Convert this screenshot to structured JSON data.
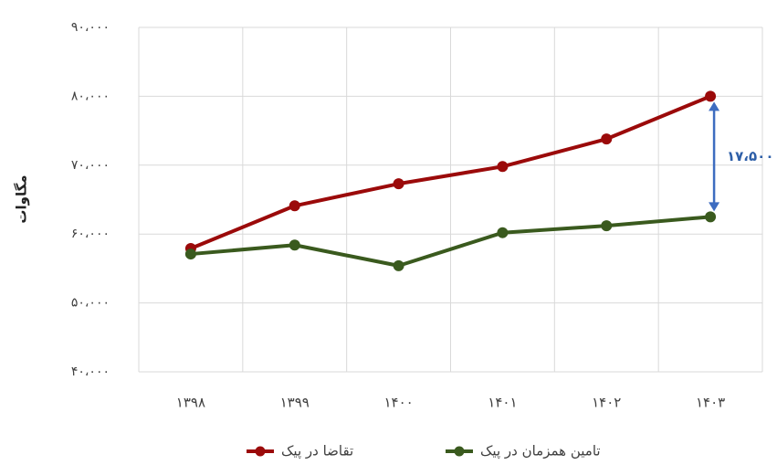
{
  "chart_data": {
    "type": "line",
    "y_label": "مگاوات",
    "annotation": "۱۷،۵۰۰",
    "categories": [
      "۱۳۹۸",
      "۱۳۹۹",
      "۱۴۰۰",
      "۱۴۰۱",
      "۱۴۰۲",
      "۱۴۰۳"
    ],
    "series": [
      {
        "name": "تقاضا در پیک",
        "color": "#9b0a0a",
        "values": [
          57900,
          64100,
          67300,
          69800,
          73800,
          80000
        ]
      },
      {
        "name": "تامین همزمان در پیک",
        "color": "#3a5a1e",
        "values": [
          57100,
          58400,
          55400,
          60200,
          61200,
          62500
        ]
      }
    ],
    "ylim": [
      40000,
      90000
    ],
    "yticks": [
      {
        "value": 40000,
        "label": "۴۰،۰۰۰"
      },
      {
        "value": 50000,
        "label": "۵۰،۰۰۰"
      },
      {
        "value": 60000,
        "label": "۶۰،۰۰۰"
      },
      {
        "value": 70000,
        "label": "۷۰،۰۰۰"
      },
      {
        "value": 80000,
        "label": "۸۰،۰۰۰"
      },
      {
        "value": 90000,
        "label": "۹۰،۰۰۰"
      }
    ],
    "grid": true
  }
}
